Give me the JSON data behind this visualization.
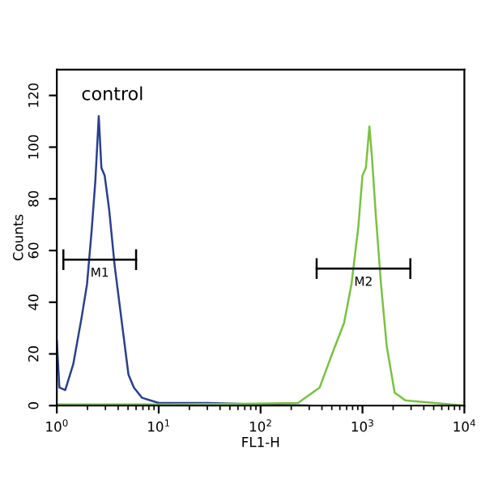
{
  "chart_data": {
    "type": "line",
    "xlabel": "FL1-H",
    "ylabel": "Counts",
    "log": "x",
    "xlim": [
      1,
      10000
    ],
    "ylim": [
      0,
      130
    ],
    "xticks": [
      {
        "value": 1,
        "label": "10$^{0}$"
      },
      {
        "value": 10,
        "label": "10$^{1}$"
      },
      {
        "value": 100,
        "label": "10$^{2}$"
      },
      {
        "value": 1000,
        "label": "10$^{3}$"
      },
      {
        "value": 10000,
        "label": "10$^{4}$"
      }
    ],
    "yticks": [
      0,
      20,
      40,
      60,
      80,
      100,
      120
    ],
    "grid": false,
    "legend": false,
    "annotations": [
      "control"
    ],
    "series": [
      {
        "color": "#2a3f8f",
        "x": [
          1,
          1.06,
          1.21,
          1.45,
          1.75,
          1.98,
          2.19,
          2.39,
          2.58,
          2.74,
          2.95,
          3.26,
          3.7,
          4.29,
          5.05,
          5.71,
          6.88,
          10,
          30,
          100,
          300
        ],
        "values": [
          25,
          7,
          6,
          16,
          34,
          47,
          67,
          87,
          112,
          92,
          89,
          76,
          54,
          34,
          12,
          7,
          3,
          1,
          1,
          0.5,
          0
        ]
      },
      {
        "color": "#7ac143",
        "x": [
          1,
          10,
          69,
          233,
          380,
          515,
          660,
          780,
          910,
          1000,
          1080,
          1170,
          1240,
          1350,
          1520,
          1730,
          2070,
          2640,
          10000
        ],
        "values": [
          0.5,
          0.5,
          0.7,
          1,
          7,
          21,
          32,
          47,
          69,
          89,
          92,
          108,
          96,
          74,
          47,
          23,
          5,
          2,
          0
        ]
      },
      {
        "name": "M1",
        "color": "#000000",
        "x": [
          1.16,
          6.0
        ],
        "values": [
          56.5,
          56.5
        ],
        "errors": [
          4,
          4
        ]
      },
      {
        "name": "M2",
        "color": "#000000",
        "x": [
          355,
          2950
        ],
        "values": [
          53,
          53
        ],
        "errors": [
          4,
          4
        ]
      }
    ]
  }
}
